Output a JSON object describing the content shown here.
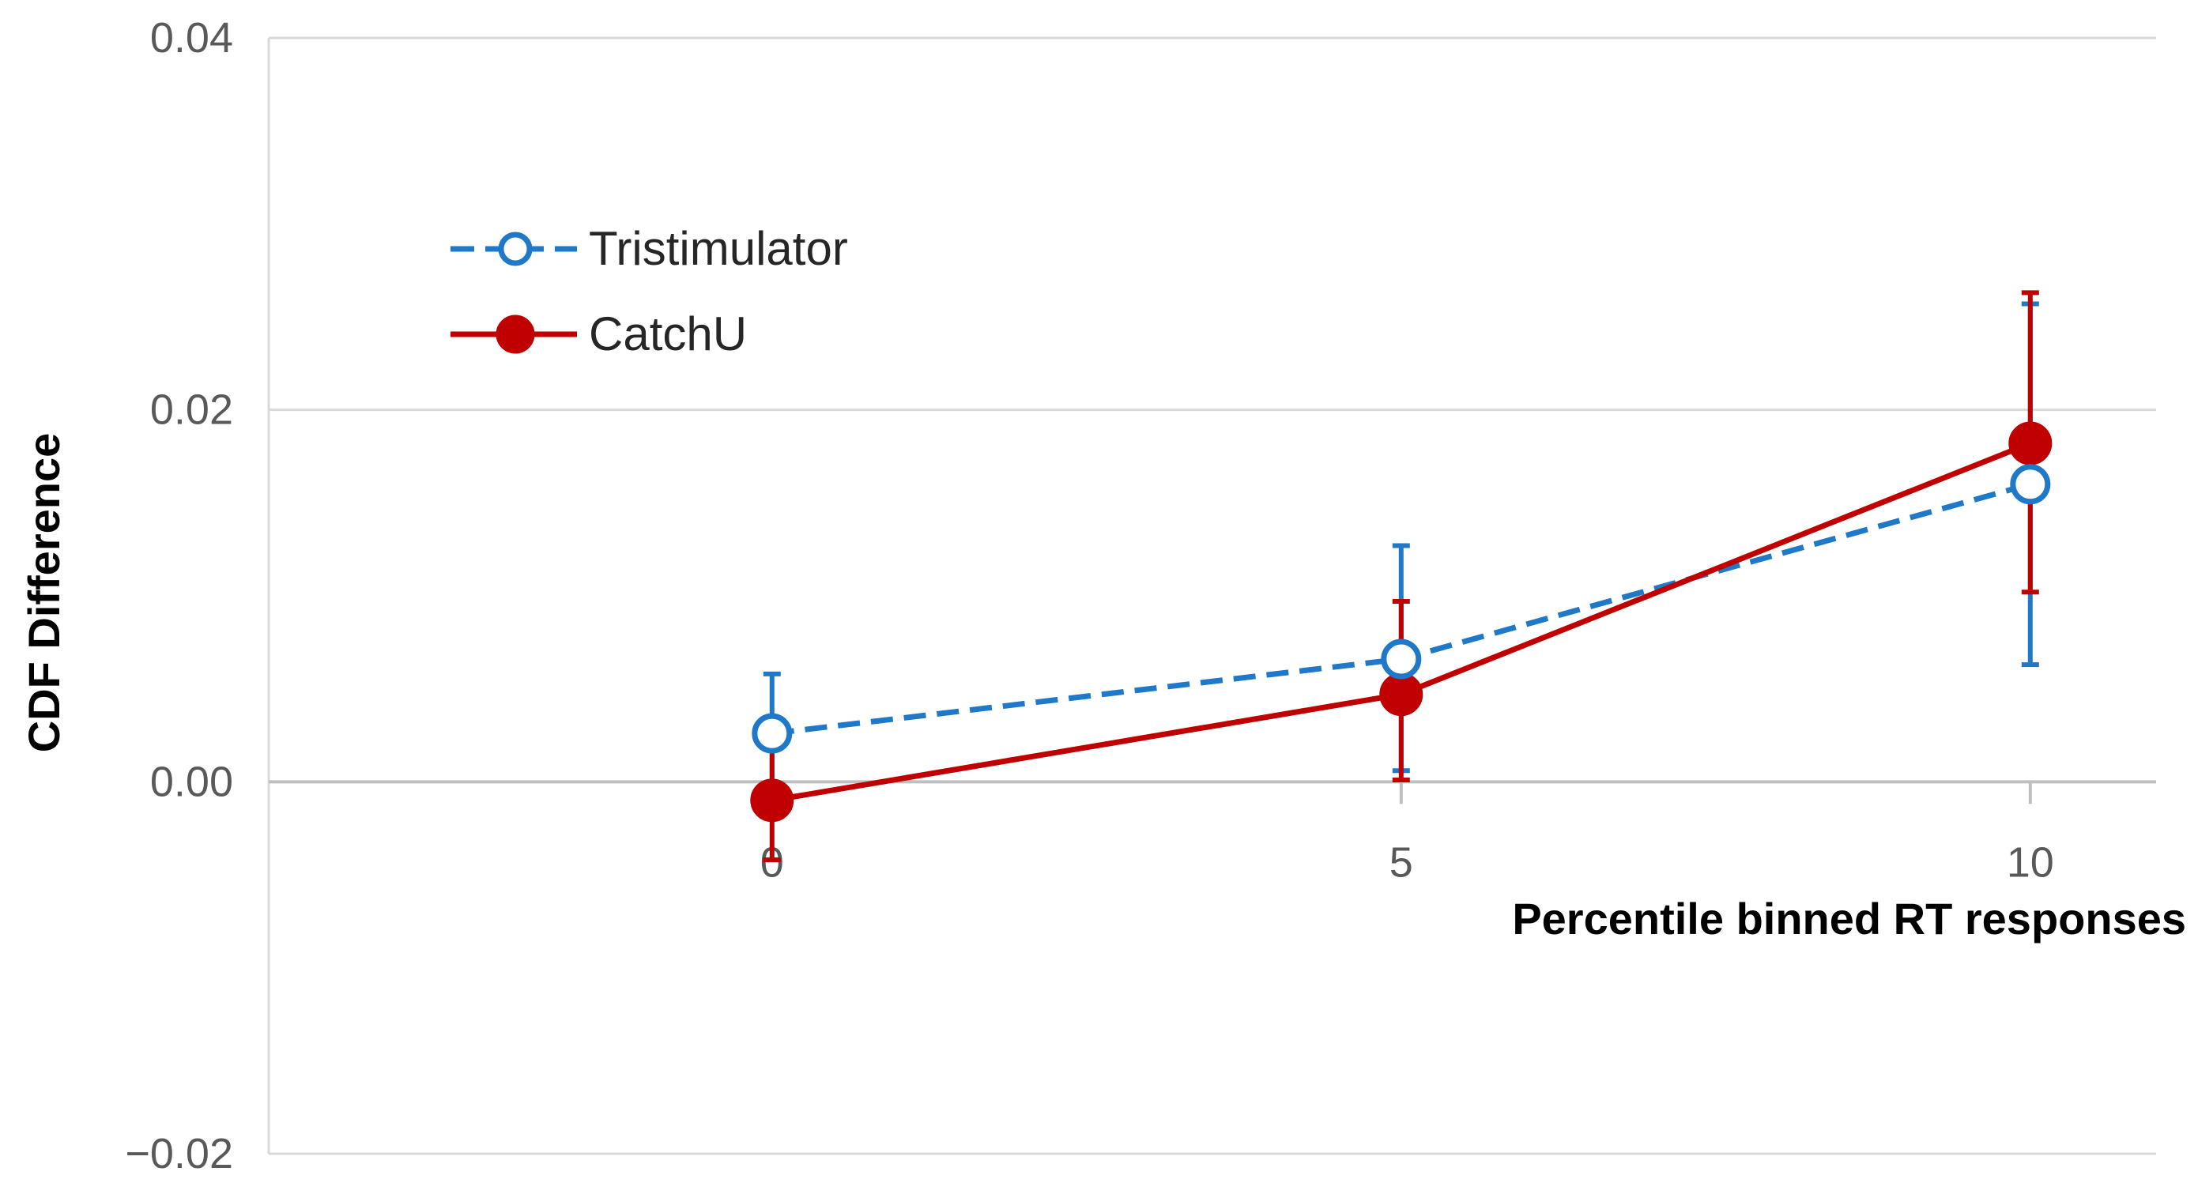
{
  "chart_data": {
    "type": "line",
    "xlabel": "Percentile binned RT responses",
    "ylabel": "CDF Difference",
    "xlim": [
      -4,
      11
    ],
    "ylim": [
      -0.02,
      0.04
    ],
    "x_ticks": [
      {
        "value": 0,
        "label": "0"
      },
      {
        "value": 5,
        "label": "5"
      },
      {
        "value": 10,
        "label": "10"
      }
    ],
    "x_minor_ticks": [
      -5,
      0,
      5,
      10,
      15
    ],
    "y_ticks": [
      {
        "value": 0.04,
        "label": "0.04"
      },
      {
        "value": 0.02,
        "label": "0.02"
      },
      {
        "value": 0.0,
        "label": "0.00"
      },
      {
        "value": -0.02,
        "label": "−0.02"
      }
    ],
    "grid": true,
    "legend_position": "top-left",
    "series": [
      {
        "name": "Tristimulator",
        "color": "#1f78c8",
        "line_style": "dashed",
        "marker": "open-circle",
        "x": [
          0,
          5,
          10
        ],
        "y": [
          0.0026,
          0.0066,
          0.016
        ],
        "err_low": [
          -0.0008,
          0.0006,
          0.0063
        ],
        "err_high": [
          0.0058,
          0.0127,
          0.0257
        ]
      },
      {
        "name": "CatchU",
        "color": "#c00000",
        "line_style": "solid",
        "marker": "filled-circle",
        "x": [
          0,
          5,
          10
        ],
        "y": [
          -0.001,
          0.0047,
          0.0182
        ],
        "err_low": [
          -0.0042,
          0.0001,
          0.0102
        ],
        "err_high": [
          0.0019,
          0.0097,
          0.0263
        ]
      }
    ]
  }
}
